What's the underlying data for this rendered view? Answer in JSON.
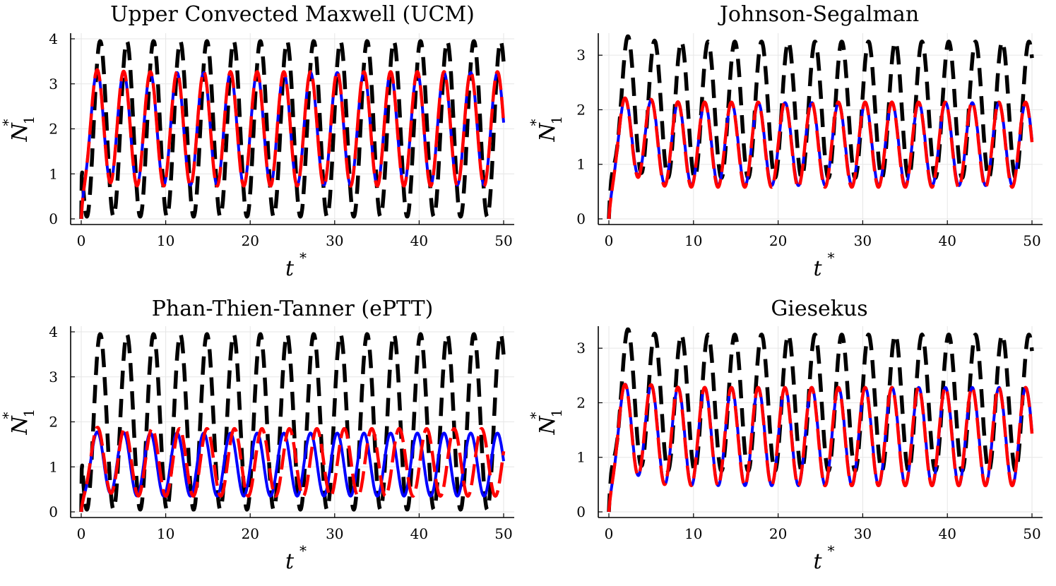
{
  "figure": {
    "colors": {
      "black": "#000000",
      "blue": "#0000ff",
      "red": "#ff0000"
    }
  },
  "chart_data": [
    {
      "type": "line",
      "title": "Upper Convected Maxwell (UCM)",
      "xlabel": "t",
      "xlabel_sup": "*",
      "ylabel": "N",
      "ylabel_sup": "*",
      "ylabel_sub": "1",
      "xlim": [
        0,
        50
      ],
      "ylim": [
        0,
        4
      ],
      "xticks": [
        0,
        10,
        20,
        30,
        40,
        50
      ],
      "yticks": [
        0,
        1,
        2,
        3,
        4
      ],
      "grid": true,
      "series": [
        {
          "name": "black-dashed",
          "color": "#000000",
          "dash": true,
          "width": 5.5,
          "model": {
            "x_end": 50,
            "amplitude": 1.95,
            "mean": 2.0,
            "period": 3.16,
            "phase": 0,
            "decay": 0.02
          }
        },
        {
          "name": "blue",
          "color": "#0000ff",
          "dash": false,
          "width": 4,
          "model": {
            "x_end": 50,
            "amplitude": 1.25,
            "mean": 2.0,
            "period": 3.16,
            "phase": 0.75,
            "decay": 0.35
          }
        },
        {
          "name": "red-dashed",
          "color": "#ff0000",
          "dash": true,
          "width": 4.5,
          "model": {
            "x_end": 50,
            "amplitude": 1.27,
            "mean": 2.0,
            "period": 3.16,
            "phase": 0.75,
            "decay": 0.35
          }
        }
      ]
    },
    {
      "type": "line",
      "title": "Johnson-Segalman",
      "xlabel": "t",
      "xlabel_sup": "*",
      "ylabel": "N",
      "ylabel_sup": "*",
      "ylabel_sub": "1",
      "xlim": [
        0,
        50
      ],
      "ylim": [
        0,
        3.3
      ],
      "xticks": [
        0,
        10,
        20,
        30,
        40,
        50
      ],
      "yticks": [
        0,
        1,
        2,
        3
      ],
      "grid": true,
      "series": [
        {
          "name": "black-dashed",
          "color": "#000000",
          "dash": true,
          "width": 5.5,
          "model": {
            "x_end": 50,
            "amplitude": 1.25,
            "mean": 2.0,
            "period": 3.16,
            "phase": 0,
            "decay": 0.4
          }
        },
        {
          "name": "blue",
          "color": "#0000ff",
          "dash": false,
          "width": 4,
          "model": {
            "x_end": 50,
            "amplitude": 0.76,
            "mean": 1.37,
            "period": 3.16,
            "phase": 0.75,
            "decay": 0.5
          }
        },
        {
          "name": "red-dashed",
          "color": "#ff0000",
          "dash": true,
          "width": 4.5,
          "model": {
            "x_end": 50,
            "amplitude": 0.78,
            "mean": 1.36,
            "period": 3.16,
            "phase": 0.8,
            "decay": 0.5
          }
        }
      ]
    },
    {
      "type": "line",
      "title": "Phan-Thien-Tanner (ePTT)",
      "xlabel": "t",
      "xlabel_sup": "*",
      "ylabel": "N",
      "ylabel_sup": "*",
      "ylabel_sub": "1",
      "xlim": [
        0,
        50
      ],
      "ylim": [
        0,
        4
      ],
      "xticks": [
        0,
        10,
        20,
        30,
        40,
        50
      ],
      "yticks": [
        0,
        1,
        2,
        3,
        4
      ],
      "grid": true,
      "series": [
        {
          "name": "black-dashed",
          "color": "#000000",
          "dash": true,
          "width": 5.5,
          "model": {
            "x_end": 50,
            "amplitude": 1.95,
            "mean": 2.0,
            "period": 3.16,
            "phase": 0,
            "decay": 0.02
          }
        },
        {
          "name": "blue",
          "color": "#0000ff",
          "dash": false,
          "width": 4,
          "model": {
            "x_end": 50,
            "amplitude": 0.7,
            "mean": 1.05,
            "period": 3.16,
            "phase": 0.75,
            "decay": 0.4
          }
        },
        {
          "name": "red-dashed",
          "color": "#ff0000",
          "dash": true,
          "width": 4.5,
          "model": {
            "x_end": 50,
            "amplitude": 0.75,
            "mean": 1.1,
            "period": 3.25,
            "phase": 0.75,
            "decay": 0.4
          }
        }
      ]
    },
    {
      "type": "line",
      "title": "Giesekus",
      "xlabel": "t",
      "xlabel_sup": "*",
      "ylabel": "N",
      "ylabel_sup": "*",
      "ylabel_sub": "1",
      "xlim": [
        0,
        50
      ],
      "ylim": [
        0,
        3.3
      ],
      "xticks": [
        0,
        10,
        20,
        30,
        40,
        50
      ],
      "yticks": [
        0,
        1,
        2,
        3
      ],
      "grid": true,
      "series": [
        {
          "name": "black-dashed",
          "color": "#000000",
          "dash": true,
          "width": 5.5,
          "model": {
            "x_end": 50,
            "amplitude": 1.25,
            "mean": 2.0,
            "period": 3.16,
            "phase": 0,
            "decay": 0.4
          }
        },
        {
          "name": "blue",
          "color": "#0000ff",
          "dash": false,
          "width": 4,
          "model": {
            "x_end": 50,
            "amplitude": 0.9,
            "mean": 1.38,
            "period": 3.16,
            "phase": 0.75,
            "decay": 0.5
          }
        },
        {
          "name": "red-dashed",
          "color": "#ff0000",
          "dash": true,
          "width": 4.5,
          "model": {
            "x_end": 50,
            "amplitude": 0.9,
            "mean": 1.38,
            "period": 3.16,
            "phase": 0.8,
            "decay": 0.5
          }
        }
      ]
    }
  ]
}
